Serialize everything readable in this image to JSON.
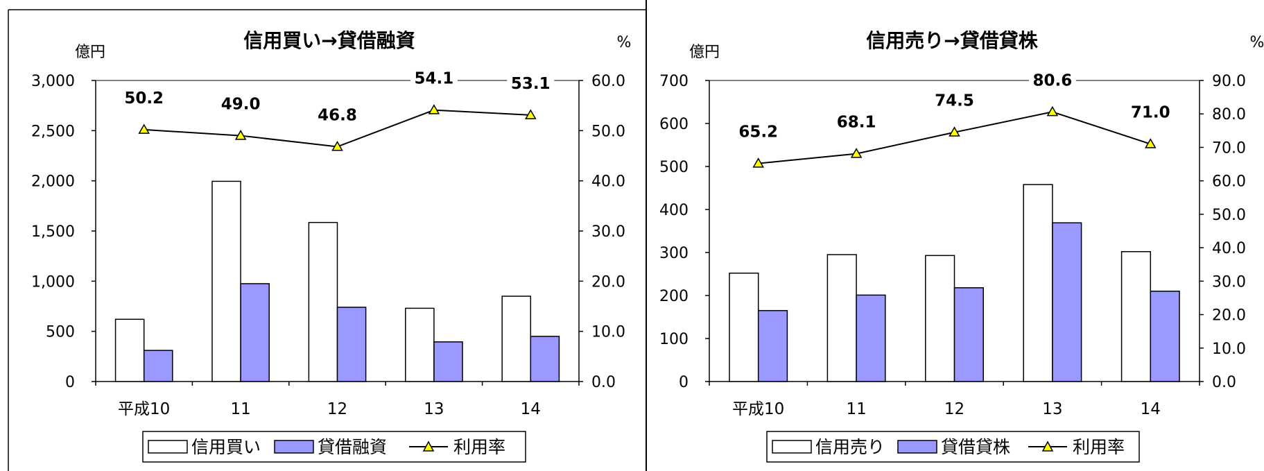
{
  "colors": {
    "bar_primary": "#ffffff",
    "bar_secondary": "#9999ff",
    "line": "#000000",
    "marker": "#ffff00",
    "stroke": "#000000"
  },
  "chart_data": [
    {
      "type": "bar",
      "title": "信用買い→貸借融資",
      "ylabel_left": "億円",
      "ylabel_right": "%",
      "categories": [
        "平成10",
        "11",
        "12",
        "13",
        "14"
      ],
      "left_axis": {
        "min": 0,
        "max": 3000,
        "step": 500,
        "tick_labels": [
          "0",
          "500",
          "1,000",
          "1,500",
          "2,000",
          "2,500",
          "3,000"
        ]
      },
      "right_axis": {
        "min": 0,
        "max": 60,
        "step": 10,
        "tick_labels": [
          "0.0",
          "10.0",
          "20.0",
          "30.0",
          "40.0",
          "50.0",
          "60.0"
        ]
      },
      "series": [
        {
          "name": "信用買い",
          "kind": "bar",
          "axis": "left",
          "values": [
            620,
            1995,
            1585,
            730,
            850
          ]
        },
        {
          "name": "貸借融資",
          "kind": "bar",
          "axis": "left",
          "values": [
            310,
            975,
            740,
            395,
            450
          ]
        },
        {
          "name": "利用率",
          "kind": "line",
          "axis": "right",
          "values": [
            50.2,
            49.0,
            46.8,
            54.1,
            53.1
          ],
          "labels": [
            "50.2",
            "49.0",
            "46.8",
            "54.1",
            "53.1"
          ]
        }
      ],
      "legend_position": "bottom",
      "grid": false
    },
    {
      "type": "bar",
      "title": "信用売り→貸借貸株",
      "ylabel_left": "億円",
      "ylabel_right": "%",
      "categories": [
        "平成10",
        "11",
        "12",
        "13",
        "14"
      ],
      "left_axis": {
        "min": 0,
        "max": 700,
        "step": 100,
        "tick_labels": [
          "0",
          "100",
          "200",
          "300",
          "400",
          "500",
          "600",
          "700"
        ]
      },
      "right_axis": {
        "min": 0,
        "max": 90,
        "step": 10,
        "tick_labels": [
          "0.0",
          "10.0",
          "20.0",
          "30.0",
          "40.0",
          "50.0",
          "60.0",
          "70.0",
          "80.0",
          "90.0"
        ]
      },
      "series": [
        {
          "name": "信用売り",
          "kind": "bar",
          "axis": "left",
          "values": [
            252,
            295,
            293,
            458,
            302
          ]
        },
        {
          "name": "貸借貸株",
          "kind": "bar",
          "axis": "left",
          "values": [
            165,
            201,
            218,
            369,
            210
          ]
        },
        {
          "name": "利用率",
          "kind": "line",
          "axis": "right",
          "values": [
            65.2,
            68.1,
            74.5,
            80.6,
            71.0
          ],
          "labels": [
            "65.2",
            "68.1",
            "74.5",
            "80.6",
            "71.0"
          ]
        }
      ],
      "legend_position": "bottom",
      "grid": false
    }
  ]
}
